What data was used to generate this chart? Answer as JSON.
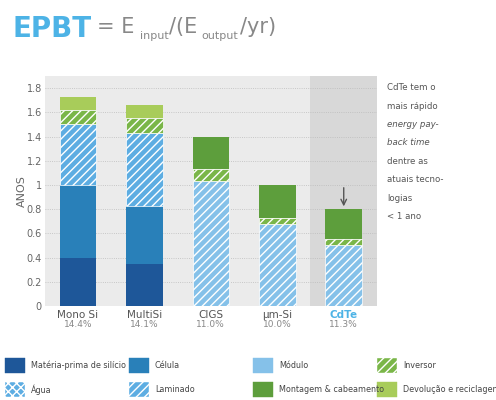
{
  "categories": [
    "Mono Si",
    "MultiSi",
    "CIGS",
    "μm-Si",
    "CdTe"
  ],
  "percentages": [
    "14.4%",
    "14.1%",
    "11.0%",
    "10.0%",
    "11.3%"
  ],
  "fig_bg": "#ffffff",
  "chart_bg": "#ebebeb",
  "title_bg": "#ffffff",
  "ylabel": "ANOS",
  "ylim": [
    0,
    1.9
  ],
  "yticks": [
    0,
    0.2,
    0.4,
    0.6,
    0.8,
    1.0,
    1.2,
    1.4,
    1.6,
    1.8
  ],
  "bars": {
    "Mono Si": [
      [
        0.4,
        "#1e5799",
        null
      ],
      [
        0.6,
        "#2980b9",
        null
      ],
      [
        0.5,
        "#5dade2",
        "////"
      ],
      [
        0.12,
        "#7ab648",
        "////"
      ],
      [
        0.11,
        "#a8cc5a",
        null
      ]
    ],
    "MultiSi": [
      [
        0.35,
        "#1e5799",
        null
      ],
      [
        0.48,
        "#2980b9",
        null
      ],
      [
        0.6,
        "#5dade2",
        "////"
      ],
      [
        0.12,
        "#7ab648",
        "////"
      ],
      [
        0.11,
        "#a8cc5a",
        null
      ]
    ],
    "CIGS": [
      [
        1.03,
        "#85c1e9",
        "////"
      ],
      [
        0.1,
        "#7ab648",
        "////"
      ],
      [
        0.27,
        "#5d9e3c",
        null
      ]
    ],
    "μm-Si": [
      [
        0.68,
        "#85c1e9",
        "////"
      ],
      [
        0.05,
        "#7ab648",
        "////"
      ],
      [
        0.27,
        "#5d9e3c",
        null
      ]
    ],
    "CdTe": [
      [
        0.5,
        "#85c1e9",
        "////"
      ],
      [
        0.05,
        "#7ab648",
        "////"
      ],
      [
        0.25,
        "#5d9e3c",
        null
      ]
    ]
  },
  "annotation_lines": [
    {
      "text": "CdTe tem o",
      "style": "normal"
    },
    {
      "text": "mais rápido",
      "style": "normal"
    },
    {
      "text": "energy pay-",
      "style": "italic"
    },
    {
      "text": "back time",
      "style": "italic"
    },
    {
      "text": "dentre as",
      "style": "normal"
    },
    {
      "text": "atuais tecno-",
      "style": "normal"
    },
    {
      "text": "logias",
      "style": "normal"
    },
    {
      "text": "< 1 ano",
      "style": "normal"
    }
  ],
  "legend": [
    {
      "label": "Matéria-prima de silício",
      "color": "#1e5799",
      "hatch": null,
      "row": 0,
      "col": 0
    },
    {
      "label": "Célula",
      "color": "#2980b9",
      "hatch": null,
      "row": 0,
      "col": 1
    },
    {
      "label": "Módulo",
      "color": "#85c1e9",
      "hatch": null,
      "row": 0,
      "col": 2
    },
    {
      "label": "Inversor",
      "color": "#7ab648",
      "hatch": "////",
      "row": 0,
      "col": 3
    },
    {
      "label": "Água",
      "color": "#5dade2",
      "hatch": "xxxx",
      "row": 1,
      "col": 0
    },
    {
      "label": "Laminado",
      "color": "#5dade2",
      "hatch": "////",
      "row": 1,
      "col": 1
    },
    {
      "label": "Montagem & cabeamento",
      "color": "#5d9e3c",
      "hatch": null,
      "row": 1,
      "col": 2
    },
    {
      "label": "Devolução e reciclagem",
      "color": "#a8cc5a",
      "hatch": null,
      "row": 1,
      "col": 3
    }
  ]
}
